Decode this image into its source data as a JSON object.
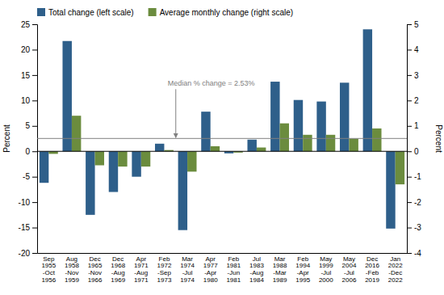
{
  "chart_data": {
    "type": "bar",
    "categories": [
      "Sep\n1955\n-Oct\n1956",
      "Aug\n1958\n-Nov\n1959",
      "Dec\n1965\n-Nov\n1966",
      "Dec\n1968\n-Aug\n1969",
      "Apr\n1971\n-Aug\n1971",
      "Feb\n1972\n-Sep\n1973",
      "Mar\n1974\n-Jul\n1974",
      "Apr\n1977\n-Apr\n1980",
      "Feb\n1981\n-Jun\n1981",
      "Jul\n1983\n-Aug\n1984",
      "Mar\n1988\n-Mar\n1989",
      "Feb\n1994\n-Apr\n1995",
      "May\n1999\n-Jul\n2000",
      "May\n2004\n-Jul\n2006",
      "Dec\n2016\n-Feb\n2019",
      "Jan\n2022\n-Dec\n2022"
    ],
    "series": [
      {
        "name": "Total change (left scale)",
        "color": "#2e5f8a",
        "values": [
          -6.2,
          21.7,
          -12.5,
          -8.0,
          -5.0,
          1.5,
          -15.5,
          7.8,
          -0.4,
          2.3,
          13.7,
          10.1,
          9.8,
          13.5,
          24.0,
          -15.2
        ]
      },
      {
        "name": "Average monthly change (right scale)",
        "color": "#6b8c3e",
        "axis": "y2",
        "values": [
          -0.1,
          1.4,
          -0.55,
          -0.6,
          -0.6,
          0.05,
          -0.8,
          0.2,
          -0.05,
          0.15,
          1.1,
          0.65,
          0.65,
          0.5,
          0.9,
          -1.3
        ]
      }
    ],
    "ylim": [
      -20,
      25
    ],
    "yticks": [
      -20,
      -15,
      -10,
      -5,
      0,
      5,
      10,
      15,
      20,
      25
    ],
    "y2lim": [
      -4,
      5
    ],
    "y2ticks": [
      -4,
      -3,
      -2,
      -1,
      0,
      1,
      2,
      3,
      4,
      5
    ],
    "ylabel": "Percent",
    "y2label": "Percent",
    "reference_lines": [
      {
        "value": 2.53,
        "label": "Median % change = 2.53%"
      }
    ],
    "legend": "upper left",
    "grid": false
  }
}
